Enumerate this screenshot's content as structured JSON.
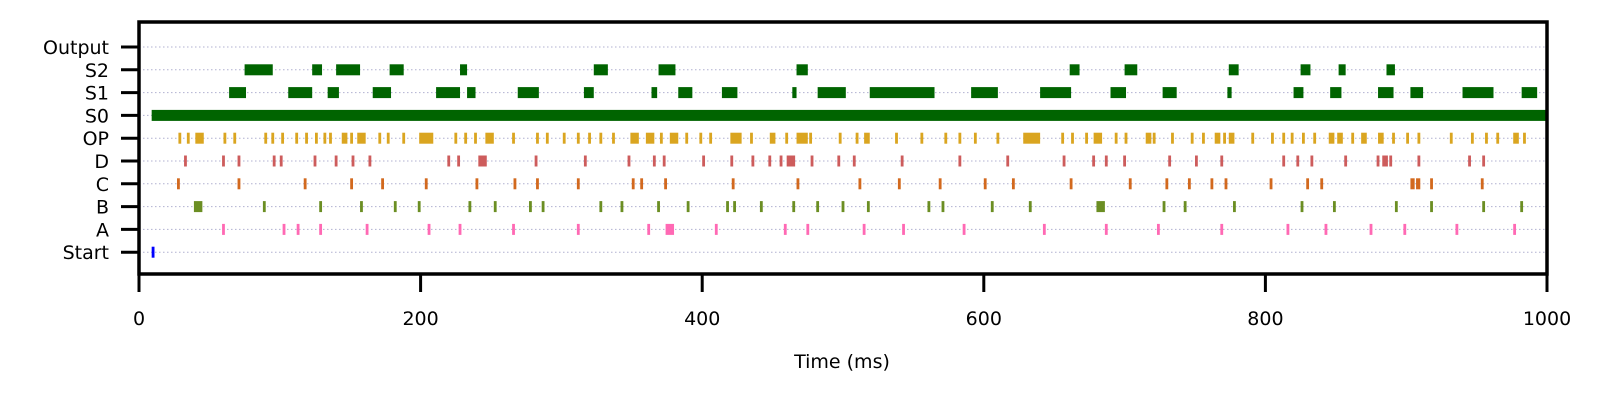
{
  "chart_data": {
    "type": "raster",
    "xlabel": "Time (ms)",
    "ylabel": "",
    "xlim": [
      0,
      1000
    ],
    "x_ticks": [
      0,
      200,
      400,
      600,
      800,
      1000
    ],
    "grid": "horizontal dotted",
    "rows": [
      {
        "label": "Start",
        "color": "#0000ff",
        "events": [
          [
            9,
            11
          ]
        ]
      },
      {
        "label": "A",
        "color": "#ff69b4",
        "events": [
          [
            59,
            61
          ],
          [
            102,
            104
          ],
          [
            112,
            114
          ],
          [
            128,
            130
          ],
          [
            161,
            163
          ],
          [
            205,
            207
          ],
          [
            227,
            229
          ],
          [
            265,
            267
          ],
          [
            311,
            313
          ],
          [
            361,
            363
          ],
          [
            374,
            380
          ],
          [
            409,
            411
          ],
          [
            458,
            460
          ],
          [
            474,
            476
          ],
          [
            514,
            516
          ],
          [
            542,
            544
          ],
          [
            585,
            587
          ],
          [
            642,
            644
          ],
          [
            686,
            688
          ],
          [
            723,
            725
          ],
          [
            768,
            770
          ],
          [
            815,
            817
          ],
          [
            842,
            844
          ],
          [
            874,
            876
          ],
          [
            898,
            900
          ],
          [
            935,
            937
          ],
          [
            976,
            978
          ]
        ]
      },
      {
        "label": "B",
        "color": "#6b8e23",
        "events": [
          [
            39,
            45
          ],
          [
            88,
            90
          ],
          [
            128,
            130
          ],
          [
            157,
            159
          ],
          [
            181,
            183
          ],
          [
            198,
            200
          ],
          [
            234,
            236
          ],
          [
            252,
            254
          ],
          [
            277,
            279
          ],
          [
            286,
            288
          ],
          [
            327,
            329
          ],
          [
            342,
            344
          ],
          [
            368,
            370
          ],
          [
            389,
            391
          ],
          [
            417,
            419
          ],
          [
            422,
            424
          ],
          [
            441,
            443
          ],
          [
            464,
            466
          ],
          [
            481,
            483
          ],
          [
            499,
            501
          ],
          [
            517,
            519
          ],
          [
            560,
            562
          ],
          [
            570,
            572
          ],
          [
            605,
            607
          ],
          [
            632,
            634
          ],
          [
            680,
            686
          ],
          [
            727,
            729
          ],
          [
            742,
            744
          ],
          [
            777,
            779
          ],
          [
            825,
            827
          ],
          [
            848,
            850
          ],
          [
            892,
            894
          ],
          [
            917,
            919
          ],
          [
            954,
            956
          ],
          [
            981,
            983
          ]
        ]
      },
      {
        "label": "C",
        "color": "#d2691e",
        "events": [
          [
            27,
            29
          ],
          [
            70,
            72
          ],
          [
            117,
            119
          ],
          [
            150,
            152
          ],
          [
            172,
            174
          ],
          [
            203,
            205
          ],
          [
            239,
            241
          ],
          [
            266,
            268
          ],
          [
            282,
            284
          ],
          [
            311,
            313
          ],
          [
            350,
            352
          ],
          [
            356,
            358
          ],
          [
            373,
            375
          ],
          [
            421,
            423
          ],
          [
            467,
            469
          ],
          [
            511,
            513
          ],
          [
            539,
            541
          ],
          [
            568,
            570
          ],
          [
            600,
            602
          ],
          [
            620,
            622
          ],
          [
            661,
            663
          ],
          [
            703,
            705
          ],
          [
            729,
            731
          ],
          [
            745,
            747
          ],
          [
            761,
            763
          ],
          [
            771,
            773
          ],
          [
            803,
            805
          ],
          [
            829,
            831
          ],
          [
            839,
            841
          ],
          [
            903,
            906
          ],
          [
            907,
            910
          ],
          [
            917,
            919
          ],
          [
            953,
            955
          ]
        ]
      },
      {
        "label": "D",
        "color": "#cd5c5c",
        "events": [
          [
            32,
            34
          ],
          [
            59,
            61
          ],
          [
            70,
            72
          ],
          [
            95,
            97
          ],
          [
            100,
            102
          ],
          [
            124,
            126
          ],
          [
            139,
            141
          ],
          [
            151,
            153
          ],
          [
            163,
            165
          ],
          [
            219,
            221
          ],
          [
            226,
            228
          ],
          [
            241,
            247
          ],
          [
            281,
            283
          ],
          [
            316,
            318
          ],
          [
            347,
            349
          ],
          [
            365,
            367
          ],
          [
            372,
            374
          ],
          [
            400,
            402
          ],
          [
            420,
            422
          ],
          [
            435,
            437
          ],
          [
            447,
            449
          ],
          [
            455,
            457
          ],
          [
            460,
            466
          ],
          [
            477,
            479
          ],
          [
            496,
            498
          ],
          [
            507,
            509
          ],
          [
            541,
            543
          ],
          [
            582,
            584
          ],
          [
            616,
            618
          ],
          [
            656,
            658
          ],
          [
            677,
            679
          ],
          [
            686,
            688
          ],
          [
            699,
            701
          ],
          [
            731,
            733
          ],
          [
            750,
            752
          ],
          [
            768,
            770
          ],
          [
            812,
            814
          ],
          [
            822,
            824
          ],
          [
            832,
            834
          ],
          [
            856,
            858
          ],
          [
            879,
            881
          ],
          [
            883,
            887
          ],
          [
            888,
            890
          ],
          [
            908,
            910
          ],
          [
            944,
            946
          ],
          [
            954,
            956
          ]
        ]
      },
      {
        "label": "OP",
        "color": "#daa520",
        "events": [
          [
            28,
            30
          ],
          [
            34,
            36
          ],
          [
            40,
            46
          ],
          [
            60,
            62
          ],
          [
            67,
            69
          ],
          [
            89,
            91
          ],
          [
            94,
            96
          ],
          [
            101,
            103
          ],
          [
            111,
            113
          ],
          [
            118,
            120
          ],
          [
            125,
            127
          ],
          [
            131,
            133
          ],
          [
            135,
            137
          ],
          [
            144,
            148
          ],
          [
            150,
            152
          ],
          [
            155,
            161
          ],
          [
            170,
            172
          ],
          [
            176,
            178
          ],
          [
            187,
            189
          ],
          [
            199,
            209
          ],
          [
            224,
            226
          ],
          [
            231,
            233
          ],
          [
            238,
            240
          ],
          [
            246,
            252
          ],
          [
            265,
            267
          ],
          [
            282,
            284
          ],
          [
            289,
            291
          ],
          [
            301,
            303
          ],
          [
            311,
            313
          ],
          [
            319,
            321
          ],
          [
            327,
            329
          ],
          [
            336,
            338
          ],
          [
            349,
            355
          ],
          [
            360,
            366
          ],
          [
            370,
            372
          ],
          [
            377,
            383
          ],
          [
            388,
            390
          ],
          [
            398,
            400
          ],
          [
            405,
            407
          ],
          [
            420,
            428
          ],
          [
            434,
            436
          ],
          [
            448,
            452
          ],
          [
            459,
            461
          ],
          [
            467,
            475
          ],
          [
            476,
            478
          ],
          [
            497,
            499
          ],
          [
            509,
            511
          ],
          [
            515,
            519
          ],
          [
            537,
            539
          ],
          [
            555,
            557
          ],
          [
            572,
            574
          ],
          [
            582,
            584
          ],
          [
            593,
            595
          ],
          [
            609,
            611
          ],
          [
            628,
            640
          ],
          [
            655,
            657
          ],
          [
            662,
            664
          ],
          [
            672,
            674
          ],
          [
            678,
            684
          ],
          [
            693,
            695
          ],
          [
            700,
            702
          ],
          [
            715,
            719
          ],
          [
            720,
            722
          ],
          [
            733,
            735
          ],
          [
            747,
            749
          ],
          [
            755,
            757
          ],
          [
            764,
            768
          ],
          [
            770,
            772
          ],
          [
            774,
            778
          ],
          [
            790,
            792
          ],
          [
            804,
            806
          ],
          [
            812,
            814
          ],
          [
            818,
            820
          ],
          [
            826,
            828
          ],
          [
            834,
            836
          ],
          [
            845,
            849
          ],
          [
            851,
            855
          ],
          [
            861,
            863
          ],
          [
            868,
            872
          ],
          [
            880,
            884
          ],
          [
            890,
            892
          ],
          [
            900,
            902
          ],
          [
            908,
            910
          ],
          [
            931,
            933
          ],
          [
            946,
            948
          ],
          [
            956,
            958
          ],
          [
            964,
            966
          ],
          [
            976,
            980
          ],
          [
            983,
            985
          ]
        ]
      },
      {
        "label": "S0",
        "color": "#006400",
        "events": [
          [
            9,
            1000
          ]
        ]
      },
      {
        "label": "S1",
        "color": "#006400",
        "events": [
          [
            64,
            76
          ],
          [
            106,
            123
          ],
          [
            134,
            142
          ],
          [
            166,
            179
          ],
          [
            211,
            228
          ],
          [
            233,
            239
          ],
          [
            269,
            284
          ],
          [
            316,
            323
          ],
          [
            364,
            368
          ],
          [
            383,
            393
          ],
          [
            414,
            425
          ],
          [
            464,
            467
          ],
          [
            482,
            502
          ],
          [
            519,
            565
          ],
          [
            591,
            610
          ],
          [
            640,
            662
          ],
          [
            690,
            701
          ],
          [
            727,
            737
          ],
          [
            773,
            776
          ],
          [
            820,
            827
          ],
          [
            846,
            854
          ],
          [
            880,
            891
          ],
          [
            903,
            912
          ],
          [
            940,
            962
          ],
          [
            982,
            993
          ]
        ]
      },
      {
        "label": "S2",
        "color": "#006400",
        "events": [
          [
            75,
            95
          ],
          [
            123,
            130
          ],
          [
            140,
            157
          ],
          [
            178,
            188
          ],
          [
            228,
            233
          ],
          [
            323,
            333
          ],
          [
            369,
            381
          ],
          [
            467,
            475
          ],
          [
            661,
            668
          ],
          [
            700,
            709
          ],
          [
            774,
            781
          ],
          [
            825,
            832
          ],
          [
            852,
            857
          ],
          [
            886,
            892
          ]
        ]
      },
      {
        "label": "Output",
        "color": "#006400",
        "events": []
      }
    ]
  }
}
